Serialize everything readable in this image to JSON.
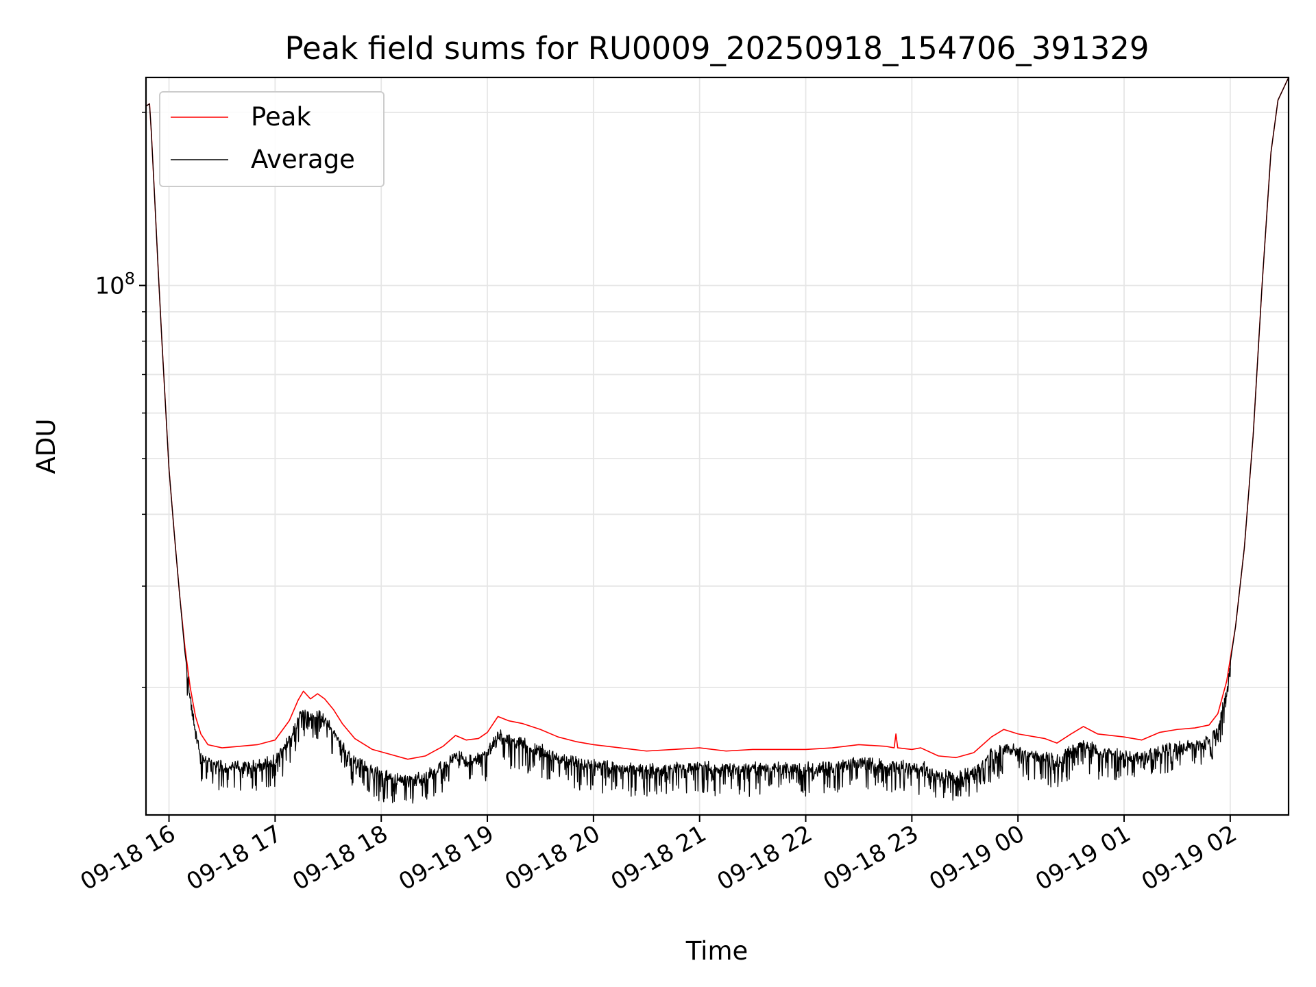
{
  "chart_data": {
    "type": "line",
    "title": "Peak field sums for RU0009_20250918_154706_391329",
    "xlabel": "Time",
    "ylabel": "ADU",
    "y_scale": "log",
    "x_ticks": [
      {
        "value": "2025-09-18 16:00",
        "label": "09-18 16"
      },
      {
        "value": "2025-09-18 17:00",
        "label": "09-18 17"
      },
      {
        "value": "2025-09-18 18:00",
        "label": "09-18 18"
      },
      {
        "value": "2025-09-18 19:00",
        "label": "09-18 19"
      },
      {
        "value": "2025-09-18 20:00",
        "label": "09-18 20"
      },
      {
        "value": "2025-09-18 21:00",
        "label": "09-18 21"
      },
      {
        "value": "2025-09-18 22:00",
        "label": "09-18 22"
      },
      {
        "value": "2025-09-18 23:00",
        "label": "09-18 23"
      },
      {
        "value": "2025-09-19 00:00",
        "label": "09-19 00"
      },
      {
        "value": "2025-09-19 01:00",
        "label": "09-19 01"
      },
      {
        "value": "2025-09-19 02:00",
        "label": "09-19 02"
      }
    ],
    "y_major_tick": {
      "value": 100000000,
      "label_base": "10",
      "label_exp": "8"
    },
    "y_minor_ticks": [
      20000000,
      30000000,
      40000000,
      50000000,
      60000000,
      70000000,
      80000000,
      90000000,
      200000000
    ],
    "xlim": [
      "2025-09-18 15:47",
      "2025-09-19 02:33"
    ],
    "ylim": [
      12000000,
      230000000
    ],
    "grid": true,
    "grid_color": "#e6e6e6",
    "legend": {
      "placement": "upper-left"
    },
    "series": [
      {
        "name": "Peak",
        "color": "#ff0000",
        "style": "upper-envelope",
        "points": [
          [
            "2025-09-18 15:47",
            205000000
          ],
          [
            "2025-09-18 15:49",
            207000000
          ],
          [
            "2025-09-18 15:50",
            185000000
          ],
          [
            "2025-09-18 15:52",
            140000000
          ],
          [
            "2025-09-18 15:54",
            105000000
          ],
          [
            "2025-09-18 15:56",
            80000000
          ],
          [
            "2025-09-18 15:58",
            62000000
          ],
          [
            "2025-09-18 16:00",
            48000000
          ],
          [
            "2025-09-18 16:03",
            37000000
          ],
          [
            "2025-09-18 16:06",
            29000000
          ],
          [
            "2025-09-18 16:09",
            23500000
          ],
          [
            "2025-09-18 16:12",
            20000000
          ],
          [
            "2025-09-18 16:15",
            17800000
          ],
          [
            "2025-09-18 16:18",
            16600000
          ],
          [
            "2025-09-18 16:22",
            15900000
          ],
          [
            "2025-09-18 16:30",
            15700000
          ],
          [
            "2025-09-18 16:40",
            15800000
          ],
          [
            "2025-09-18 16:50",
            15900000
          ],
          [
            "2025-09-18 17:00",
            16200000
          ],
          [
            "2025-09-18 17:08",
            17500000
          ],
          [
            "2025-09-18 17:13",
            19000000
          ],
          [
            "2025-09-18 17:16",
            19700000
          ],
          [
            "2025-09-18 17:20",
            19100000
          ],
          [
            "2025-09-18 17:24",
            19500000
          ],
          [
            "2025-09-18 17:28",
            19100000
          ],
          [
            "2025-09-18 17:33",
            18300000
          ],
          [
            "2025-09-18 17:38",
            17300000
          ],
          [
            "2025-09-18 17:45",
            16300000
          ],
          [
            "2025-09-18 17:55",
            15600000
          ],
          [
            "2025-09-18 18:05",
            15300000
          ],
          [
            "2025-09-18 18:15",
            15000000
          ],
          [
            "2025-09-18 18:25",
            15200000
          ],
          [
            "2025-09-18 18:35",
            15800000
          ],
          [
            "2025-09-18 18:42",
            16500000
          ],
          [
            "2025-09-18 18:48",
            16200000
          ],
          [
            "2025-09-18 18:55",
            16300000
          ],
          [
            "2025-09-18 19:00",
            16700000
          ],
          [
            "2025-09-18 19:06",
            17800000
          ],
          [
            "2025-09-18 19:12",
            17500000
          ],
          [
            "2025-09-18 19:20",
            17300000
          ],
          [
            "2025-09-18 19:30",
            16900000
          ],
          [
            "2025-09-18 19:40",
            16400000
          ],
          [
            "2025-09-18 19:50",
            16100000
          ],
          [
            "2025-09-18 20:00",
            15900000
          ],
          [
            "2025-09-18 20:15",
            15700000
          ],
          [
            "2025-09-18 20:30",
            15500000
          ],
          [
            "2025-09-18 20:45",
            15600000
          ],
          [
            "2025-09-18 21:00",
            15700000
          ],
          [
            "2025-09-18 21:15",
            15500000
          ],
          [
            "2025-09-18 21:30",
            15600000
          ],
          [
            "2025-09-18 21:45",
            15600000
          ],
          [
            "2025-09-18 22:00",
            15600000
          ],
          [
            "2025-09-18 22:15",
            15700000
          ],
          [
            "2025-09-18 22:30",
            15900000
          ],
          [
            "2025-09-18 22:45",
            15800000
          ],
          [
            "2025-09-18 22:50",
            15700000
          ],
          [
            "2025-09-18 22:51",
            16600000
          ],
          [
            "2025-09-18 22:52",
            15700000
          ],
          [
            "2025-09-18 23:00",
            15600000
          ],
          [
            "2025-09-18 23:05",
            15700000
          ],
          [
            "2025-09-18 23:15",
            15200000
          ],
          [
            "2025-09-18 23:25",
            15100000
          ],
          [
            "2025-09-18 23:35",
            15400000
          ],
          [
            "2025-09-18 23:45",
            16400000
          ],
          [
            "2025-09-18 23:52",
            16900000
          ],
          [
            "2025-09-19 00:00",
            16600000
          ],
          [
            "2025-09-19 00:15",
            16300000
          ],
          [
            "2025-09-19 00:22",
            16000000
          ],
          [
            "2025-09-19 00:30",
            16600000
          ],
          [
            "2025-09-19 00:37",
            17100000
          ],
          [
            "2025-09-19 00:45",
            16600000
          ],
          [
            "2025-09-19 01:00",
            16400000
          ],
          [
            "2025-09-19 01:10",
            16200000
          ],
          [
            "2025-09-19 01:20",
            16700000
          ],
          [
            "2025-09-19 01:30",
            16900000
          ],
          [
            "2025-09-19 01:40",
            17000000
          ],
          [
            "2025-09-19 01:48",
            17200000
          ],
          [
            "2025-09-19 01:53",
            18000000
          ],
          [
            "2025-09-19 01:58",
            20500000
          ],
          [
            "2025-09-19 02:03",
            25500000
          ],
          [
            "2025-09-19 02:08",
            35000000
          ],
          [
            "2025-09-19 02:13",
            55000000
          ],
          [
            "2025-09-19 02:18",
            100000000
          ],
          [
            "2025-09-19 02:23",
            170000000
          ],
          [
            "2025-09-19 02:27",
            210000000
          ],
          [
            "2025-09-19 02:33",
            230000000
          ]
        ]
      },
      {
        "name": "Average",
        "color": "#000000",
        "style": "noisy-average",
        "points": [
          [
            "2025-09-18 15:47",
            205000000
          ],
          [
            "2025-09-18 15:49",
            207000000
          ],
          [
            "2025-09-18 15:50",
            185000000
          ],
          [
            "2025-09-18 15:52",
            140000000
          ],
          [
            "2025-09-18 15:54",
            105000000
          ],
          [
            "2025-09-18 15:56",
            80000000
          ],
          [
            "2025-09-18 15:58",
            62000000
          ],
          [
            "2025-09-18 16:00",
            48000000
          ],
          [
            "2025-09-18 16:03",
            37000000
          ],
          [
            "2025-09-18 16:06",
            29000000
          ],
          [
            "2025-09-18 16:09",
            23000000
          ],
          [
            "2025-09-18 16:12",
            19500000
          ],
          [
            "2025-09-18 16:15",
            16800000
          ],
          [
            "2025-09-18 16:18",
            15500000
          ],
          [
            "2025-09-18 16:22",
            14900000
          ],
          [
            "2025-09-18 16:30",
            14700000
          ],
          [
            "2025-09-18 16:40",
            14700000
          ],
          [
            "2025-09-18 16:50",
            14800000
          ],
          [
            "2025-09-18 17:00",
            15000000
          ],
          [
            "2025-09-18 17:08",
            16300000
          ],
          [
            "2025-09-18 17:13",
            17800000
          ],
          [
            "2025-09-18 17:16",
            18300000
          ],
          [
            "2025-09-18 17:20",
            17900000
          ],
          [
            "2025-09-18 17:24",
            18200000
          ],
          [
            "2025-09-18 17:28",
            17700000
          ],
          [
            "2025-09-18 17:33",
            17000000
          ],
          [
            "2025-09-18 17:38",
            16000000
          ],
          [
            "2025-09-18 17:45",
            15000000
          ],
          [
            "2025-09-18 17:55",
            14400000
          ],
          [
            "2025-09-18 18:05",
            14100000
          ],
          [
            "2025-09-18 18:15",
            13900000
          ],
          [
            "2025-09-18 18:25",
            14100000
          ],
          [
            "2025-09-18 18:35",
            14700000
          ],
          [
            "2025-09-18 18:42",
            15400000
          ],
          [
            "2025-09-18 18:48",
            15100000
          ],
          [
            "2025-09-18 18:55",
            15200000
          ],
          [
            "2025-09-18 19:00",
            15600000
          ],
          [
            "2025-09-18 19:06",
            16700000
          ],
          [
            "2025-09-18 19:12",
            16300000
          ],
          [
            "2025-09-18 19:20",
            16100000
          ],
          [
            "2025-09-18 19:30",
            15700000
          ],
          [
            "2025-09-18 19:40",
            15300000
          ],
          [
            "2025-09-18 19:50",
            15000000
          ],
          [
            "2025-09-18 20:00",
            14800000
          ],
          [
            "2025-09-18 20:15",
            14600000
          ],
          [
            "2025-09-18 20:30",
            14500000
          ],
          [
            "2025-09-18 20:45",
            14600000
          ],
          [
            "2025-09-18 21:00",
            14700000
          ],
          [
            "2025-09-18 21:15",
            14500000
          ],
          [
            "2025-09-18 21:30",
            14600000
          ],
          [
            "2025-09-18 21:45",
            14600000
          ],
          [
            "2025-09-18 22:00",
            14600000
          ],
          [
            "2025-09-18 22:15",
            14700000
          ],
          [
            "2025-09-18 22:30",
            14900000
          ],
          [
            "2025-09-18 22:45",
            14800000
          ],
          [
            "2025-09-18 23:00",
            14600000
          ],
          [
            "2025-09-18 23:05",
            14700000
          ],
          [
            "2025-09-18 23:15",
            14200000
          ],
          [
            "2025-09-18 23:25",
            14100000
          ],
          [
            "2025-09-18 23:35",
            14400000
          ],
          [
            "2025-09-18 23:45",
            15400000
          ],
          [
            "2025-09-18 23:52",
            15900000
          ],
          [
            "2025-09-19 00:00",
            15600000
          ],
          [
            "2025-09-19 00:15",
            15300000
          ],
          [
            "2025-09-19 00:22",
            15000000
          ],
          [
            "2025-09-19 00:30",
            15600000
          ],
          [
            "2025-09-19 00:37",
            16100000
          ],
          [
            "2025-09-19 00:45",
            15600000
          ],
          [
            "2025-09-19 01:00",
            15400000
          ],
          [
            "2025-09-19 01:10",
            15200000
          ],
          [
            "2025-09-19 01:20",
            15700000
          ],
          [
            "2025-09-19 01:30",
            15900000
          ],
          [
            "2025-09-19 01:40",
            16000000
          ],
          [
            "2025-09-19 01:48",
            16200000
          ],
          [
            "2025-09-19 01:53",
            17000000
          ],
          [
            "2025-09-19 01:58",
            20000000
          ],
          [
            "2025-09-19 02:03",
            25500000
          ],
          [
            "2025-09-19 02:08",
            35000000
          ],
          [
            "2025-09-19 02:13",
            55000000
          ],
          [
            "2025-09-19 02:18",
            100000000
          ],
          [
            "2025-09-19 02:23",
            170000000
          ],
          [
            "2025-09-19 02:27",
            210000000
          ],
          [
            "2025-09-19 02:33",
            230000000
          ]
        ]
      }
    ]
  }
}
